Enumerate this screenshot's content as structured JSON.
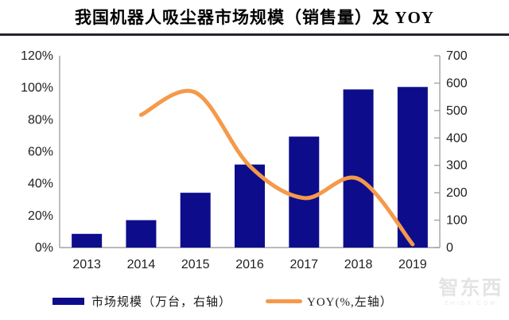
{
  "title": "我国机器人吸尘器市场规模（销售量）及 YOY",
  "colors": {
    "bar": "#0d0d8c",
    "line": "#f5994a",
    "axis": "#a3a3a3",
    "text": "#1f1f1f",
    "title_rule": "#25252d",
    "watermark": "#e4e4e6"
  },
  "chart_data": {
    "type": "combo",
    "title": "我国机器人吸尘器市场规模（销售量）及 YOY",
    "categories": [
      "2013",
      "2014",
      "2015",
      "2016",
      "2017",
      "2018",
      "2019"
    ],
    "series": [
      {
        "name": "市场规模（万台，右轴）",
        "type": "bar",
        "axis": "right",
        "values": [
          50,
          100,
          200,
          303,
          405,
          577,
          586
        ]
      },
      {
        "name": "YOY(%,左轴）",
        "type": "line",
        "axis": "left",
        "values": [
          null,
          83,
          97,
          51,
          31,
          43,
          2
        ]
      }
    ],
    "left_axis": {
      "ticks": [
        "0%",
        "20%",
        "40%",
        "60%",
        "80%",
        "100%",
        "120%"
      ],
      "min": 0,
      "max": 120,
      "unit": "%"
    },
    "right_axis": {
      "ticks": [
        0,
        100,
        200,
        300,
        400,
        500,
        600,
        700
      ],
      "min": 0,
      "max": 700
    },
    "grid": false,
    "legend_position": "bottom"
  },
  "legend": [
    {
      "label": "市场规模（万台，右轴）",
      "swatch": "bar"
    },
    {
      "label": "YOY(%,左轴）",
      "swatch": "line"
    }
  ],
  "watermark": {
    "logo": "智东西",
    "sub": "ZHIDX.COM"
  }
}
